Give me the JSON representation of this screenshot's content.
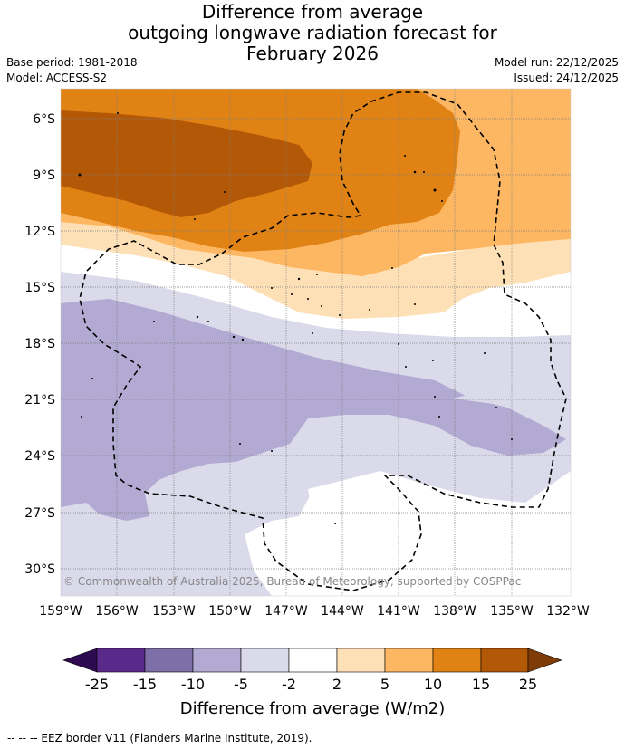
{
  "title": {
    "line1": "Difference from average",
    "line2": "outgoing longwave radiation forecast for",
    "line3": "February 2026"
  },
  "meta_left": {
    "base_period": "Base period: 1981-2018",
    "model": "Model: ACCESS-S2"
  },
  "meta_right": {
    "model_run": "Model run: 22/12/2025",
    "issued": "Issued: 24/12/2025"
  },
  "map": {
    "lat_ticks": [
      "6°S",
      "9°S",
      "12°S",
      "15°S",
      "18°S",
      "21°S",
      "24°S",
      "27°S",
      "30°S"
    ],
    "lon_ticks": [
      "159°W",
      "156°W",
      "153°W",
      "150°W",
      "147°W",
      "144°W",
      "141°W",
      "138°W",
      "135°W",
      "132°W"
    ],
    "copyright": "© Commonwealth of Australia 2025, Bureau of Meteorology, supported by COSPPac"
  },
  "colorbar": {
    "ticks": [
      "-25",
      "-15",
      "-10",
      "-5",
      "-2",
      "2",
      "5",
      "10",
      "15",
      "25"
    ],
    "colors": {
      "below": "#2d0a52",
      "c1": "#5a2a8a",
      "c2": "#7e6fa9",
      "c3": "#b2aad2",
      "c4": "#dadaea",
      "c5": "#ffffff",
      "c6": "#fee0b6",
      "c7": "#fdb762",
      "c8": "#e08214",
      "c9": "#b35806",
      "above": "#7f3b08"
    },
    "label": "Difference from average (W/m2)"
  },
  "footer": {
    "legend": "--  --  -- EEZ border V11 (Flanders Marine Institute, 2019)."
  }
}
